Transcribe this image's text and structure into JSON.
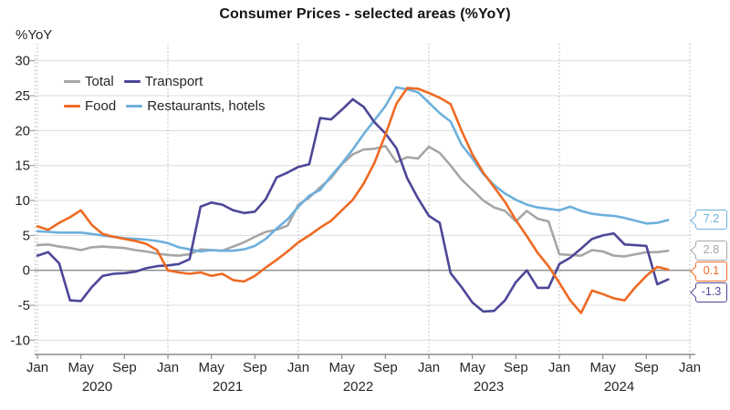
{
  "title": "Consumer Prices - selected areas (%YoY)",
  "y_axis_label": "%YoY",
  "chart_data": {
    "type": "line",
    "title": "Consumer Prices - selected areas (%YoY)",
    "x_start": "Jan 2020",
    "x_end": "Nov 2024",
    "frequency": "monthly",
    "ylim": [
      -10,
      30
    ],
    "y_ticks": [
      30,
      25,
      20,
      15,
      10,
      5,
      0,
      -5,
      -10
    ],
    "x_tick_month_labels": [
      "Jan",
      "May",
      "Sep",
      "Jan",
      "May",
      "Sep",
      "Jan",
      "May",
      "Sep",
      "Jan",
      "May",
      "Sep",
      "Jan",
      "May",
      "Sep",
      "Jan"
    ],
    "x_tick_month_step": 4,
    "x_total_months": 60,
    "year_labels": [
      "2020",
      "2021",
      "2022",
      "2023",
      "2024"
    ],
    "grid": {
      "horizontal": "solid",
      "vertical": "dotted-at-january"
    },
    "legend_position": "top-left-inside",
    "series": [
      {
        "name": "Total",
        "color": "#a6a6a6",
        "end_label": "2.8",
        "values": [
          3.6,
          3.7,
          3.4,
          3.2,
          2.9,
          3.3,
          3.4,
          3.3,
          3.2,
          2.9,
          2.7,
          2.4,
          2.2,
          2.1,
          2.3,
          3.0,
          2.9,
          2.8,
          3.4,
          4.0,
          4.8,
          5.5,
          5.8,
          6.4,
          9.4,
          10.4,
          11.9,
          13.2,
          15.2,
          16.6,
          17.3,
          17.4,
          17.8,
          15.5,
          16.2,
          16.0,
          17.7,
          16.8,
          15.0,
          13.0,
          11.5,
          10.0,
          9.0,
          8.5,
          7.0,
          8.5,
          7.4,
          7.0,
          2.3,
          2.2,
          2.1,
          2.9,
          2.7,
          2.1,
          2.0,
          2.3,
          2.6,
          2.6,
          2.8
        ]
      },
      {
        "name": "Transport",
        "color": "#4d4798",
        "end_label": "-1.3",
        "values": [
          2.1,
          2.6,
          1.0,
          -4.3,
          -4.4,
          -2.4,
          -0.8,
          -0.5,
          -0.4,
          -0.2,
          0.3,
          0.6,
          0.7,
          0.9,
          1.6,
          9.1,
          9.7,
          9.4,
          8.6,
          8.2,
          8.4,
          10.2,
          13.3,
          14.0,
          14.8,
          15.2,
          21.8,
          21.6,
          23.0,
          24.5,
          23.4,
          21.2,
          19.6,
          17.5,
          13.2,
          10.3,
          7.8,
          6.8,
          -0.4,
          -2.4,
          -4.6,
          -5.9,
          -5.8,
          -4.3,
          -1.7,
          0.0,
          -2.5,
          -2.5,
          0.9,
          1.8,
          3.1,
          4.5,
          5.0,
          5.3,
          3.7,
          3.6,
          3.5,
          -2.0,
          -1.3
        ]
      },
      {
        "name": "Food",
        "color": "#ef6a23",
        "end_label": "0.1",
        "values": [
          6.3,
          5.8,
          6.8,
          7.6,
          8.6,
          6.5,
          5.2,
          4.8,
          4.5,
          4.2,
          3.8,
          2.9,
          0.0,
          -0.3,
          -0.5,
          -0.3,
          -0.8,
          -0.5,
          -1.4,
          -1.6,
          -0.8,
          0.4,
          1.5,
          2.7,
          4.0,
          5.0,
          6.1,
          7.1,
          8.6,
          10.1,
          12.4,
          15.4,
          19.4,
          23.8,
          26.1,
          26.0,
          25.4,
          24.7,
          23.8,
          20.0,
          16.6,
          14.0,
          11.9,
          9.8,
          7.2,
          4.9,
          2.5,
          0.6,
          -1.8,
          -4.3,
          -6.1,
          -2.9,
          -3.4,
          -4.0,
          -4.3,
          -2.4,
          -0.8,
          0.5,
          0.1
        ]
      },
      {
        "name": "Restaurants, hotels",
        "color": "#6db0dd",
        "end_label": "7.2",
        "values": [
          5.6,
          5.5,
          5.4,
          5.4,
          5.4,
          5.2,
          5.0,
          4.8,
          4.6,
          4.5,
          4.4,
          4.2,
          3.9,
          3.3,
          3.0,
          2.7,
          2.9,
          2.8,
          2.8,
          3.0,
          3.5,
          4.5,
          6.0,
          7.3,
          9.1,
          10.7,
          11.5,
          13.5,
          15.3,
          17.3,
          19.5,
          21.5,
          23.5,
          26.2,
          25.9,
          25.5,
          24.0,
          22.5,
          21.3,
          18.0,
          16.0,
          13.8,
          12.2,
          11.0,
          10.1,
          9.4,
          9.0,
          8.8,
          8.6,
          9.1,
          8.5,
          8.1,
          7.9,
          7.8,
          7.5,
          7.1,
          6.7,
          6.8,
          7.2
        ]
      }
    ]
  }
}
